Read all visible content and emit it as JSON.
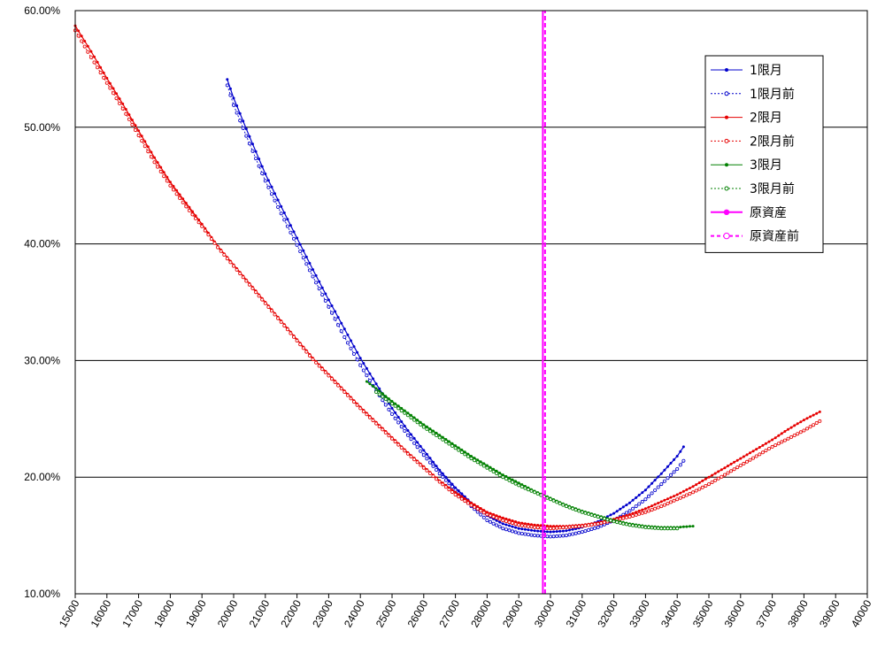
{
  "chart_data": {
    "type": "line",
    "title": "",
    "xlabel": "",
    "ylabel": "",
    "xlim": [
      15000,
      40000
    ],
    "ylim": [
      10,
      60
    ],
    "x_ticks": [
      15000,
      16000,
      17000,
      18000,
      19000,
      20000,
      21000,
      22000,
      23000,
      24000,
      25000,
      26000,
      27000,
      28000,
      29000,
      30000,
      31000,
      32000,
      33000,
      34000,
      35000,
      36000,
      37000,
      38000,
      39000,
      40000
    ],
    "y_ticks": [
      {
        "value": 10,
        "label": "10.00%"
      },
      {
        "value": 20,
        "label": "20.00%"
      },
      {
        "value": 30,
        "label": "30.00%"
      },
      {
        "value": 40,
        "label": "40.00%"
      },
      {
        "value": 50,
        "label": "50.00%"
      },
      {
        "value": 60,
        "label": "60.00%"
      }
    ],
    "grid": "horizontal",
    "legend_position": "top-right",
    "series": [
      {
        "name": "1限月",
        "color": "#0000cc",
        "style": "solid",
        "marker": "filled",
        "points": [
          [
            19800,
            54.1
          ],
          [
            20000,
            52.5
          ],
          [
            20500,
            49.2
          ],
          [
            21000,
            46.0
          ],
          [
            21500,
            43.2
          ],
          [
            22000,
            40.5
          ],
          [
            22500,
            37.8
          ],
          [
            23000,
            35.2
          ],
          [
            23500,
            32.7
          ],
          [
            24000,
            30.2
          ],
          [
            24500,
            28.0
          ],
          [
            25000,
            25.9
          ],
          [
            25500,
            24.0
          ],
          [
            26000,
            22.3
          ],
          [
            26500,
            20.6
          ],
          [
            27000,
            19.1
          ],
          [
            27500,
            17.8
          ],
          [
            28000,
            16.7
          ],
          [
            28500,
            16.0
          ],
          [
            29000,
            15.6
          ],
          [
            29500,
            15.4
          ],
          [
            30000,
            15.3
          ],
          [
            30500,
            15.4
          ],
          [
            31000,
            15.7
          ],
          [
            31500,
            16.2
          ],
          [
            32000,
            16.9
          ],
          [
            32500,
            17.8
          ],
          [
            33000,
            18.9
          ],
          [
            33500,
            20.3
          ],
          [
            34000,
            21.8
          ],
          [
            34200,
            22.6
          ]
        ]
      },
      {
        "name": "1限月前",
        "color": "#0000cc",
        "style": "dotted",
        "marker": "open",
        "points": [
          [
            19800,
            53.6
          ],
          [
            20000,
            51.9
          ],
          [
            20500,
            48.6
          ],
          [
            21000,
            45.4
          ],
          [
            21500,
            42.6
          ],
          [
            22000,
            39.9
          ],
          [
            22500,
            37.2
          ],
          [
            23000,
            34.6
          ],
          [
            23500,
            32.0
          ],
          [
            24000,
            29.6
          ],
          [
            24500,
            27.4
          ],
          [
            25000,
            25.4
          ],
          [
            25500,
            23.6
          ],
          [
            26000,
            21.9
          ],
          [
            26500,
            20.3
          ],
          [
            27000,
            18.9
          ],
          [
            27500,
            17.5
          ],
          [
            28000,
            16.3
          ],
          [
            28500,
            15.6
          ],
          [
            29000,
            15.2
          ],
          [
            29500,
            15.0
          ],
          [
            30000,
            14.9
          ],
          [
            30500,
            15.0
          ],
          [
            31000,
            15.3
          ],
          [
            31500,
            15.7
          ],
          [
            32000,
            16.3
          ],
          [
            32500,
            17.1
          ],
          [
            33000,
            18.1
          ],
          [
            33500,
            19.4
          ],
          [
            34000,
            20.7
          ],
          [
            34200,
            21.4
          ]
        ]
      },
      {
        "name": "2限月",
        "color": "#e60000",
        "style": "solid",
        "marker": "filled",
        "points": [
          [
            15000,
            58.7
          ],
          [
            15500,
            56.5
          ],
          [
            16000,
            54.2
          ],
          [
            16500,
            52.0
          ],
          [
            17000,
            49.7
          ],
          [
            17500,
            47.4
          ],
          [
            18000,
            45.3
          ],
          [
            18500,
            43.5
          ],
          [
            19000,
            41.7
          ],
          [
            19500,
            39.8
          ],
          [
            20000,
            38.2
          ],
          [
            20500,
            36.6
          ],
          [
            21000,
            35.0
          ],
          [
            21500,
            33.4
          ],
          [
            22000,
            31.8
          ],
          [
            22500,
            30.2
          ],
          [
            23000,
            28.8
          ],
          [
            23500,
            27.4
          ],
          [
            24000,
            26.0
          ],
          [
            24500,
            24.7
          ],
          [
            25000,
            23.4
          ],
          [
            25500,
            22.1
          ],
          [
            26000,
            20.9
          ],
          [
            26500,
            19.7
          ],
          [
            27000,
            18.7
          ],
          [
            27500,
            17.8
          ],
          [
            28000,
            17.0
          ],
          [
            28500,
            16.5
          ],
          [
            29000,
            16.1
          ],
          [
            29500,
            15.9
          ],
          [
            30000,
            15.8
          ],
          [
            30500,
            15.8
          ],
          [
            31000,
            15.9
          ],
          [
            31500,
            16.1
          ],
          [
            32000,
            16.4
          ],
          [
            32500,
            16.8
          ],
          [
            33000,
            17.3
          ],
          [
            33500,
            17.9
          ],
          [
            34000,
            18.5
          ],
          [
            34500,
            19.2
          ],
          [
            35000,
            20.0
          ],
          [
            35500,
            20.8
          ],
          [
            36000,
            21.6
          ],
          [
            36500,
            22.4
          ],
          [
            37000,
            23.2
          ],
          [
            37500,
            24.1
          ],
          [
            38000,
            24.9
          ],
          [
            38500,
            25.6
          ]
        ]
      },
      {
        "name": "2限月前",
        "color": "#e60000",
        "style": "dotted",
        "marker": "open",
        "points": [
          [
            15000,
            58.3
          ],
          [
            15500,
            56.0
          ],
          [
            16000,
            53.8
          ],
          [
            16500,
            51.6
          ],
          [
            17000,
            49.3
          ],
          [
            17500,
            47.0
          ],
          [
            18000,
            45.0
          ],
          [
            18500,
            43.2
          ],
          [
            19000,
            41.5
          ],
          [
            19500,
            39.7
          ],
          [
            20000,
            38.1
          ],
          [
            20500,
            36.5
          ],
          [
            21000,
            34.9
          ],
          [
            21500,
            33.3
          ],
          [
            22000,
            31.7
          ],
          [
            22500,
            30.1
          ],
          [
            23000,
            28.7
          ],
          [
            23500,
            27.3
          ],
          [
            24000,
            25.9
          ],
          [
            24500,
            24.6
          ],
          [
            25000,
            23.3
          ],
          [
            25500,
            22.0
          ],
          [
            26000,
            20.8
          ],
          [
            26500,
            19.6
          ],
          [
            27000,
            18.5
          ],
          [
            27500,
            17.6
          ],
          [
            28000,
            16.8
          ],
          [
            28500,
            16.3
          ],
          [
            29000,
            15.9
          ],
          [
            29500,
            15.7
          ],
          [
            30000,
            15.6
          ],
          [
            30500,
            15.7
          ],
          [
            31000,
            15.8
          ],
          [
            31500,
            16.0
          ],
          [
            32000,
            16.3
          ],
          [
            32500,
            16.6
          ],
          [
            33000,
            17.0
          ],
          [
            33500,
            17.5
          ],
          [
            34000,
            18.1
          ],
          [
            34500,
            18.7
          ],
          [
            35000,
            19.4
          ],
          [
            35500,
            20.2
          ],
          [
            36000,
            21.0
          ],
          [
            36500,
            21.8
          ],
          [
            37000,
            22.6
          ],
          [
            37500,
            23.3
          ],
          [
            38000,
            24.0
          ],
          [
            38500,
            24.8
          ]
        ]
      },
      {
        "name": "3限月",
        "color": "#008000",
        "style": "solid",
        "marker": "filled",
        "points": [
          [
            24200,
            28.2
          ],
          [
            24500,
            27.6
          ],
          [
            25000,
            26.5
          ],
          [
            25500,
            25.5
          ],
          [
            26000,
            24.5
          ],
          [
            26500,
            23.6
          ],
          [
            27000,
            22.7
          ],
          [
            27500,
            21.8
          ],
          [
            28000,
            21.0
          ],
          [
            28500,
            20.2
          ],
          [
            29000,
            19.5
          ],
          [
            29500,
            18.8
          ],
          [
            30000,
            18.2
          ],
          [
            30500,
            17.6
          ],
          [
            31000,
            17.1
          ],
          [
            31500,
            16.7
          ],
          [
            32000,
            16.3
          ],
          [
            32500,
            16.0
          ],
          [
            33000,
            15.8
          ],
          [
            33500,
            15.7
          ],
          [
            34000,
            15.7
          ],
          [
            34500,
            15.8
          ]
        ]
      },
      {
        "name": "3限月前",
        "color": "#008000",
        "style": "dotted",
        "marker": "open",
        "points": [
          [
            24500,
            27.3
          ],
          [
            25000,
            26.3
          ],
          [
            25500,
            25.3
          ],
          [
            26000,
            24.3
          ],
          [
            26500,
            23.4
          ],
          [
            27000,
            22.5
          ],
          [
            27500,
            21.6
          ],
          [
            28000,
            20.8
          ],
          [
            28500,
            20.0
          ],
          [
            29000,
            19.3
          ],
          [
            29500,
            18.7
          ],
          [
            30000,
            18.1
          ],
          [
            30500,
            17.5
          ],
          [
            31000,
            17.0
          ],
          [
            31500,
            16.6
          ],
          [
            32000,
            16.2
          ],
          [
            32500,
            15.9
          ],
          [
            33000,
            15.7
          ],
          [
            33500,
            15.6
          ],
          [
            34000,
            15.6
          ]
        ]
      },
      {
        "name": "原資産",
        "color": "#ff00ff",
        "style": "solid",
        "marker": "filled",
        "points": [
          [
            29760,
            10
          ],
          [
            29760,
            60
          ]
        ]
      },
      {
        "name": "原資産前",
        "color": "#ff00ff",
        "style": "dashed",
        "marker": "open",
        "points": [
          [
            29830,
            10
          ],
          [
            29830,
            60
          ]
        ]
      }
    ]
  }
}
